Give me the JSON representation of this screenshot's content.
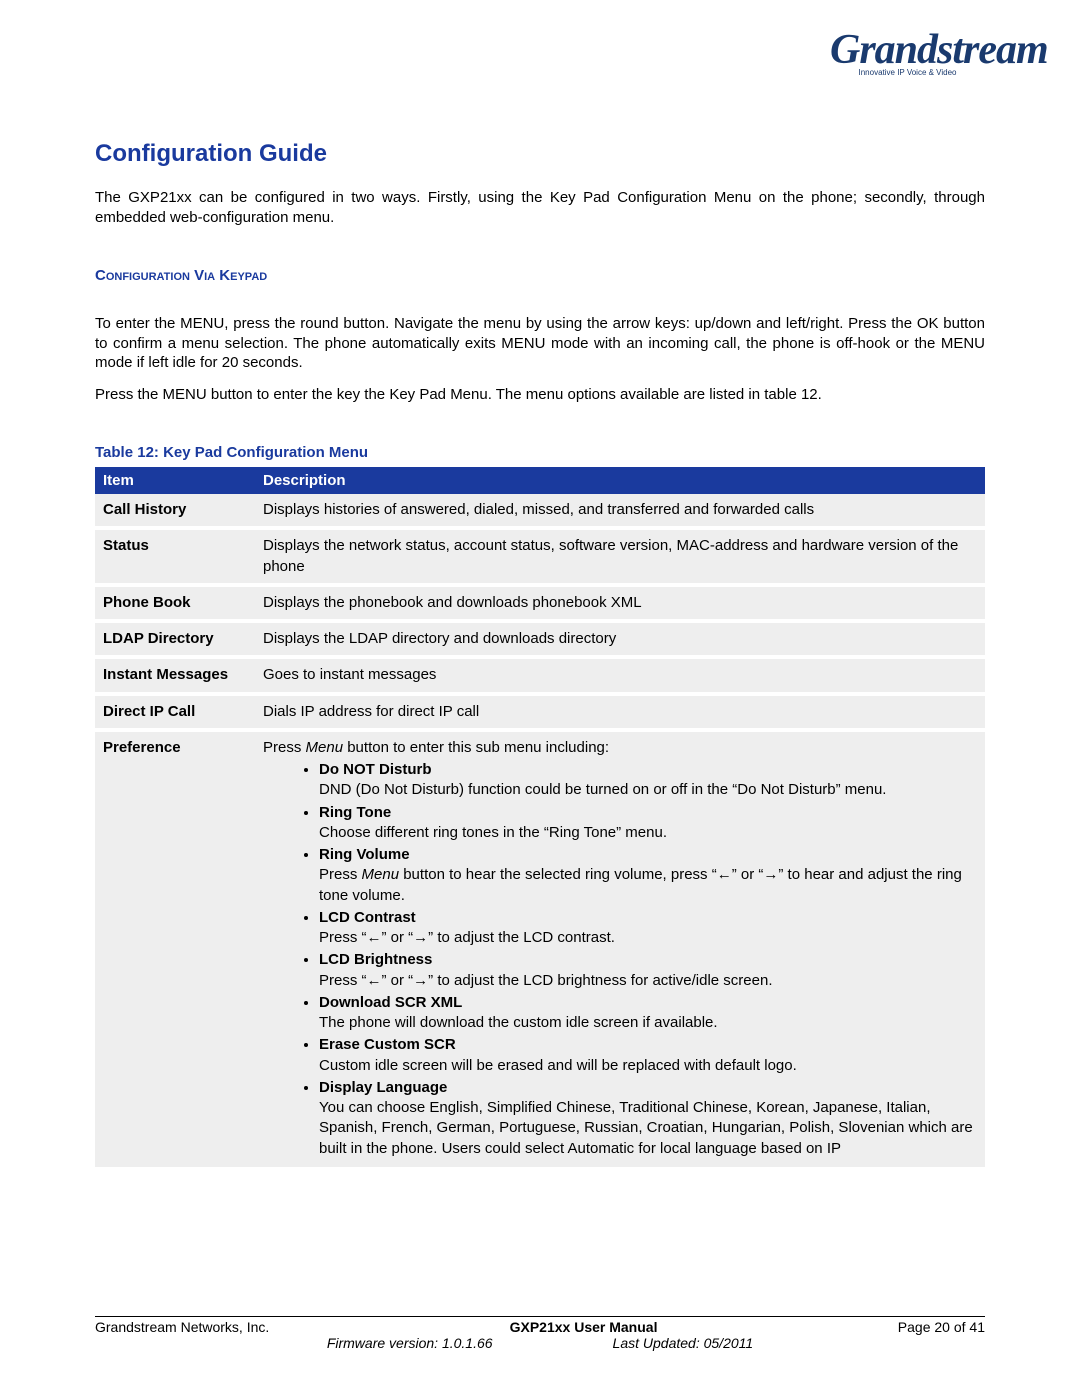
{
  "logo": {
    "brand": "Grandstream",
    "tagline": "Innovative IP Voice & Video"
  },
  "heading": "Configuration Guide",
  "intro": "The GXP21xx can be configured in two ways. Firstly, using the Key Pad Configuration Menu on the phone; secondly, through embedded web-configuration menu.",
  "section_heading": "Configuration Via Keypad",
  "para1": "To enter the MENU, press the round button. Navigate the menu by using the arrow keys: up/down and left/right. Press the OK button to confirm a menu selection. The phone automatically exits MENU mode with an incoming call, the phone is off-hook or the MENU mode if left idle for 20 seconds.",
  "para2": "Press the MENU button to enter the key the Key Pad Menu. The menu options available are listed in table 12.",
  "table_caption": "Table 12:  Key Pad Configuration Menu",
  "columns": {
    "c0": "Item",
    "c1": "Description"
  },
  "rows": {
    "r0": {
      "item": "Call History",
      "desc": "Displays histories of answered, dialed, missed, and transferred and forwarded calls"
    },
    "r1": {
      "item": "Status",
      "desc": "Displays the network status, account status, software version, MAC-address and hardware version of the phone"
    },
    "r2": {
      "item": "Phone Book",
      "desc": "Displays the phonebook and downloads phonebook XML"
    },
    "r3": {
      "item": "LDAP Directory",
      "desc": "Displays the LDAP directory and downloads directory"
    },
    "r4": {
      "item": "Instant Messages",
      "desc": "Goes to instant messages"
    },
    "r5": {
      "item": "Direct IP Call",
      "desc": "Dials IP address for direct IP call"
    },
    "r6": {
      "item": "Preference"
    }
  },
  "pref": {
    "intro_a": "Press ",
    "intro_menu": "Menu",
    "intro_b": " button to enter this sub menu including:",
    "items": {
      "i0": {
        "title": "Do NOT Disturb",
        "body": "DND (Do Not Disturb) function could be turned on or off in the “Do Not Disturb” menu."
      },
      "i1": {
        "title": "Ring Tone",
        "body": "Choose different ring tones in the “Ring Tone” menu."
      },
      "i2": {
        "title": "Ring Volume",
        "pre": "Press ",
        "menu": "Menu",
        "post": " button to hear the selected ring volume, press “←” or “→” to hear and adjust the ring tone volume."
      },
      "i3": {
        "title": "LCD Contrast",
        "body": "Press “←” or “→” to adjust the LCD contrast."
      },
      "i4": {
        "title": "LCD Brightness",
        "body": "Press “←” or “→” to adjust the LCD brightness for active/idle screen."
      },
      "i5": {
        "title": "Download SCR XML",
        "body": "The phone will download the custom idle screen if available."
      },
      "i6": {
        "title": "Erase Custom SCR",
        "body": "Custom idle screen will be erased and will be replaced with default logo."
      },
      "i7": {
        "title": "Display Language",
        "body": "You can choose English, Simplified Chinese, Traditional Chinese, Korean, Japanese, Italian, Spanish, French, German, Portuguese, Russian, Croatian, Hungarian, Polish, Slovenian which are built in the phone. Users could select Automatic for local language based on IP"
      }
    }
  },
  "footer": {
    "left": "Grandstream Networks, Inc.",
    "center": "GXP21xx User Manual",
    "right": "Page 20 of 41",
    "fw": "Firmware version: 1.0.1.66",
    "updated": "Last Updated:  05/2011"
  }
}
